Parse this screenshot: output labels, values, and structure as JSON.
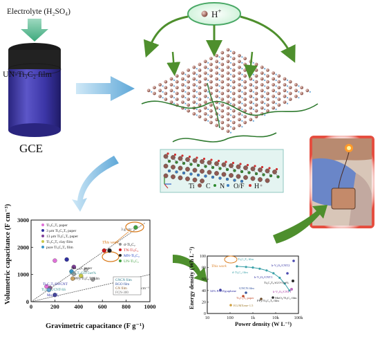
{
  "electrode": {
    "electrolyte_label": "Electrolyte (H₂SO₄)",
    "film_label": "UN-Ti₃C₂ film",
    "gce_label": "GCE"
  },
  "lattice": {
    "ion_label": "H",
    "ion_charge": "+"
  },
  "structure_legend": {
    "ti": "Ti",
    "c": "C",
    "n": "N",
    "of": "O/F",
    "h": "H"
  },
  "colors": {
    "cylinder_blue": "#3b35a6",
    "arrow_green": "#4e8f2d",
    "arrow_blue": "#5fa8d8",
    "ti_atom": "#8e5a52",
    "n_atom": "#6aa8d8",
    "inset_bg": "#e4f4f1",
    "photo_glow": "#e23a2a"
  },
  "left_chart": {
    "chart_data": {
      "type": "scatter",
      "xlabel": "Gravimetric capacitance (F g⁻¹)",
      "ylabel": "Volumetric capacitance (F cm⁻³)",
      "xlim": [
        0,
        1000
      ],
      "ylim": [
        0,
        3000
      ],
      "x_ticks": [
        "0",
        "200",
        "400",
        "600",
        "800",
        "1000"
      ],
      "y_ticks": [
        "0",
        "1000",
        "2000",
        "3000"
      ],
      "legend_left": [
        "Ti₃C₂Tₓ paper",
        "3 μm Ti₃C₂Tₓ paper",
        "13 μm Ti₃C₂Tₓ paper",
        "Ti₃C₂Tₓ clay film",
        "pure Ti₃C₂Tₓ film"
      ],
      "legend_right": [
        "d-Ti₃C₂",
        "TN-Ti₃C₂",
        "MN-Ti₃C₂",
        "UN-Ti₃C₂"
      ],
      "film_box": [
        "GNCN film",
        "RGO film",
        "GN film",
        "FCN-300"
      ],
      "annotations": [
        "This work",
        "3 g cm⁻³",
        "1 g cm⁻³",
        "Mo₁.₃₃C paper",
        "Ti₃C₂Tₓ/GO-5wt%",
        "PPy/Ti₃C₂Tₓ film",
        "Ti₃C₂Tₓ/SWCNT",
        "Ti₃C₂Tₓ/CNT-SS",
        "Mo₂CTₓ"
      ],
      "points": [
        {
          "x": 200,
          "y": 1510,
          "color": "#e070d8"
        },
        {
          "x": 130,
          "y": 560,
          "color": "#e070d8"
        },
        {
          "x": 300,
          "y": 1550,
          "color": "#3030a0"
        },
        {
          "x": 360,
          "y": 1280,
          "color": "#80409a"
        },
        {
          "x": 420,
          "y": 950,
          "color": "#c8c84a"
        },
        {
          "x": 340,
          "y": 1110,
          "color": "#3a96c8"
        },
        {
          "x": 160,
          "y": 500,
          "color": "#8c5a8a"
        },
        {
          "x": 150,
          "y": 430,
          "color": "#6aa0d8"
        },
        {
          "x": 200,
          "y": 250,
          "color": "#4a4a9a"
        },
        {
          "x": 350,
          "y": 850,
          "color": "#c8a060"
        },
        {
          "x": 360,
          "y": 1020,
          "color": "#a0a0a0"
        },
        {
          "x": 520,
          "y": 820,
          "color": "#9a9a9a"
        },
        {
          "x": 460,
          "y": 1170,
          "color": "#c0c0c0"
        },
        {
          "x": 615,
          "y": 1880,
          "color": "#d01818"
        },
        {
          "x": 660,
          "y": 1880,
          "color": "#202020"
        },
        {
          "x": 880,
          "y": 2730,
          "color": "#40a040"
        }
      ]
    }
  },
  "right_chart": {
    "chart_data": {
      "type": "scatter",
      "xlabel": "Power density (W L⁻¹)",
      "ylabel": "Energy density (Wh L⁻¹)",
      "x_scale": "log",
      "xlim": [
        10,
        100000
      ],
      "ylim": [
        0,
        100
      ],
      "x_ticks": [
        "10",
        "100",
        "1k",
        "10k",
        "100k"
      ],
      "y_ticks": [
        "0",
        "20",
        "40",
        "60",
        "80",
        "100"
      ],
      "annotations": [
        "This work",
        "Ti₃C₂Tₓ film",
        "d-Ti₃C₂ film",
        "h-V₂O₅/CNT2",
        "h-V₂O₅/CNT1",
        "Ti₃C₂Tₓ/rGO-5wt%",
        "34% PANI/graphene",
        "GNCN film",
        "Ti₃C₂Tₓ paper",
        "k-V₂O₅/CNT1",
        "MnO₂/Ti₃C₂ film",
        "PPy/Ti₃C₂Tₓ film",
        "EG/MXene-1.5"
      ],
      "series": [
        {
          "name": "This work",
          "color": "#3aa0a8",
          "x": [
            200,
            500,
            1000,
            2000,
            4000,
            8000,
            15000,
            25000,
            40000
          ],
          "y": [
            82,
            81,
            80,
            78,
            75,
            70,
            62,
            52,
            40
          ]
        }
      ]
    }
  }
}
